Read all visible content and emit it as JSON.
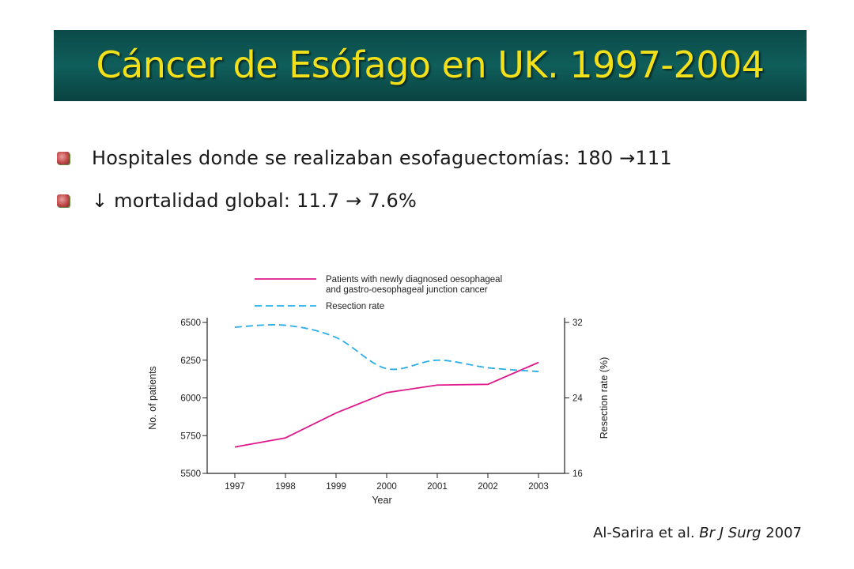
{
  "slide": {
    "title": "Cáncer de Esófago en UK. 1997-2004",
    "bullets": [
      "Hospitales donde se realizaban esofaguectomías: 180 →111",
      "↓ mortalidad global: 11.7 → 7.6%"
    ],
    "citation": {
      "authors": "Al-Sarira et al.",
      "journal": "Br J Surg",
      "year": "2007"
    }
  },
  "colors": {
    "title_bar": "#0f5e5b",
    "title_text": "#f2e01a",
    "patients_line": "#e0188c",
    "resection_line": "#29aee6"
  },
  "chart_data": {
    "type": "line",
    "x": [
      1997,
      1998,
      1999,
      2000,
      2001,
      2002,
      2003
    ],
    "xlabel": "Year",
    "ylabel": "No. of patients",
    "ylabel_right": "Resection rate (%)",
    "ylim": [
      5500,
      6500
    ],
    "ylim_right": [
      16,
      32
    ],
    "y_ticks": [
      "5500",
      "5750",
      "6000",
      "6250",
      "6500"
    ],
    "y_ticks_right": [
      "16",
      "24",
      "32"
    ],
    "x_ticks": [
      "1997",
      "1998",
      "1999",
      "2000",
      "2001",
      "2002",
      "2003"
    ],
    "series": [
      {
        "name": "Patients with newly diagnosed oesophageal and gastro-oesophageal junction cancer",
        "legend_lines": [
          "Patients with newly diagnosed oesophageal",
          "and gastro-oesophageal junction cancer"
        ],
        "axis": "left",
        "style": "solid",
        "values": [
          5675,
          5735,
          5900,
          6035,
          6085,
          6090,
          6235
        ]
      },
      {
        "name": "Resection rate",
        "legend_lines": [
          "Resection rate"
        ],
        "axis": "right",
        "style": "dashed",
        "smooth": true,
        "values": [
          31.5,
          31.7,
          30.4,
          27.1,
          28.0,
          27.2,
          26.8
        ]
      }
    ],
    "legend_position": "top"
  }
}
